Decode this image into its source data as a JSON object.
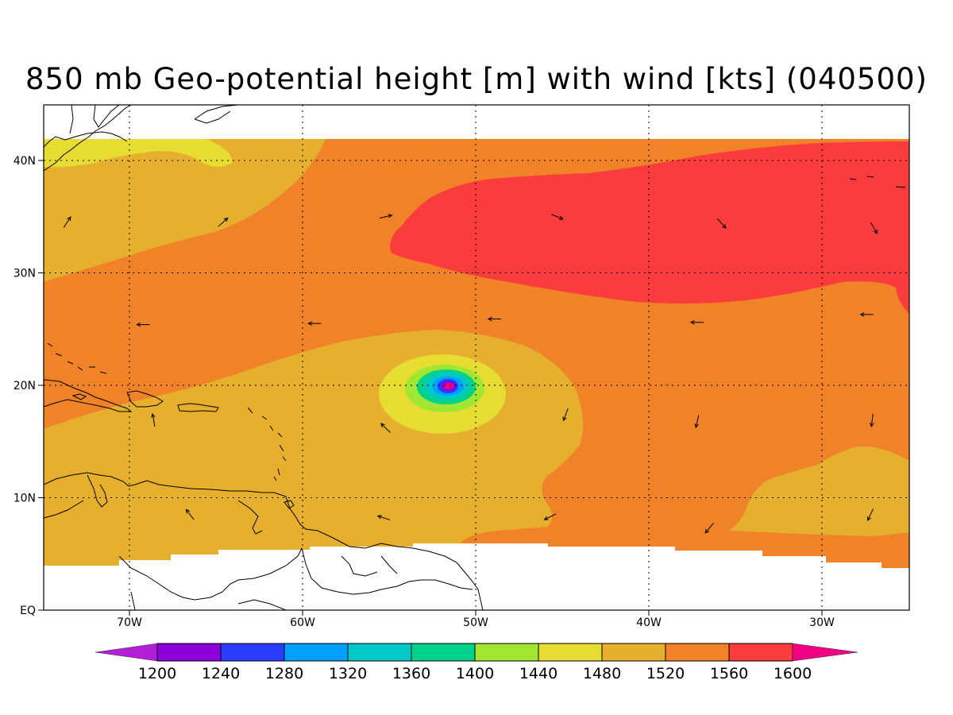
{
  "title": "850 mb Geo-potential height [m] with wind [kts] (040500)",
  "map": {
    "lon_range": [
      -75,
      -25
    ],
    "lat_range": [
      0,
      45
    ],
    "lon_ticks": [
      {
        "value": -70,
        "label": "70W"
      },
      {
        "value": -60,
        "label": "60W"
      },
      {
        "value": -50,
        "label": "50W"
      },
      {
        "value": -40,
        "label": "40W"
      },
      {
        "value": -30,
        "label": "30W"
      }
    ],
    "lat_ticks": [
      {
        "value": 0,
        "label": "EQ"
      },
      {
        "value": 10,
        "label": "10N"
      },
      {
        "value": 20,
        "label": "20N"
      },
      {
        "value": 30,
        "label": "30N"
      },
      {
        "value": 40,
        "label": "40N"
      }
    ],
    "grid": "dotted",
    "low_center": {
      "lon": -51.5,
      "lat": 20
    }
  },
  "colorbar": {
    "levels": [
      "1200",
      "1240",
      "1280",
      "1320",
      "1360",
      "1400",
      "1440",
      "1480",
      "1520",
      "1560",
      "1600"
    ],
    "colors": [
      "#8c00dc",
      "#2b3cff",
      "#00a0ff",
      "#00c8c8",
      "#00d28c",
      "#a0e632",
      "#e6dc32",
      "#e6af2d",
      "#f08228",
      "#fa3c3c"
    ],
    "under_color": "#b31ed8",
    "over_color": "#f00082"
  },
  "wind_vectors": [
    {
      "lon": -55.2,
      "lat": 35
    },
    {
      "lon": -45.3,
      "lat": 35
    },
    {
      "lon": -35.8,
      "lat": 34.4
    },
    {
      "lon": -27,
      "lat": 34
    },
    {
      "lon": -73.6,
      "lat": 34.5
    },
    {
      "lon": -64.6,
      "lat": 34.5
    },
    {
      "lon": -69.2,
      "lat": 25.4
    },
    {
      "lon": -59.3,
      "lat": 25.5
    },
    {
      "lon": -48.9,
      "lat": 25.9
    },
    {
      "lon": -37.2,
      "lat": 25.6
    },
    {
      "lon": -27.4,
      "lat": 26.3
    },
    {
      "lon": -68.6,
      "lat": 16.9
    },
    {
      "lon": -55.2,
      "lat": 16.2
    },
    {
      "lon": -44.8,
      "lat": 17.4
    },
    {
      "lon": -37.2,
      "lat": 16.8
    },
    {
      "lon": -27.1,
      "lat": 16.9
    },
    {
      "lon": -66.5,
      "lat": 8.5
    },
    {
      "lon": -55.3,
      "lat": 8.2
    },
    {
      "lon": -45.7,
      "lat": 8.3
    },
    {
      "lon": -36.5,
      "lat": 7.3
    },
    {
      "lon": -27.2,
      "lat": 8.5
    }
  ]
}
